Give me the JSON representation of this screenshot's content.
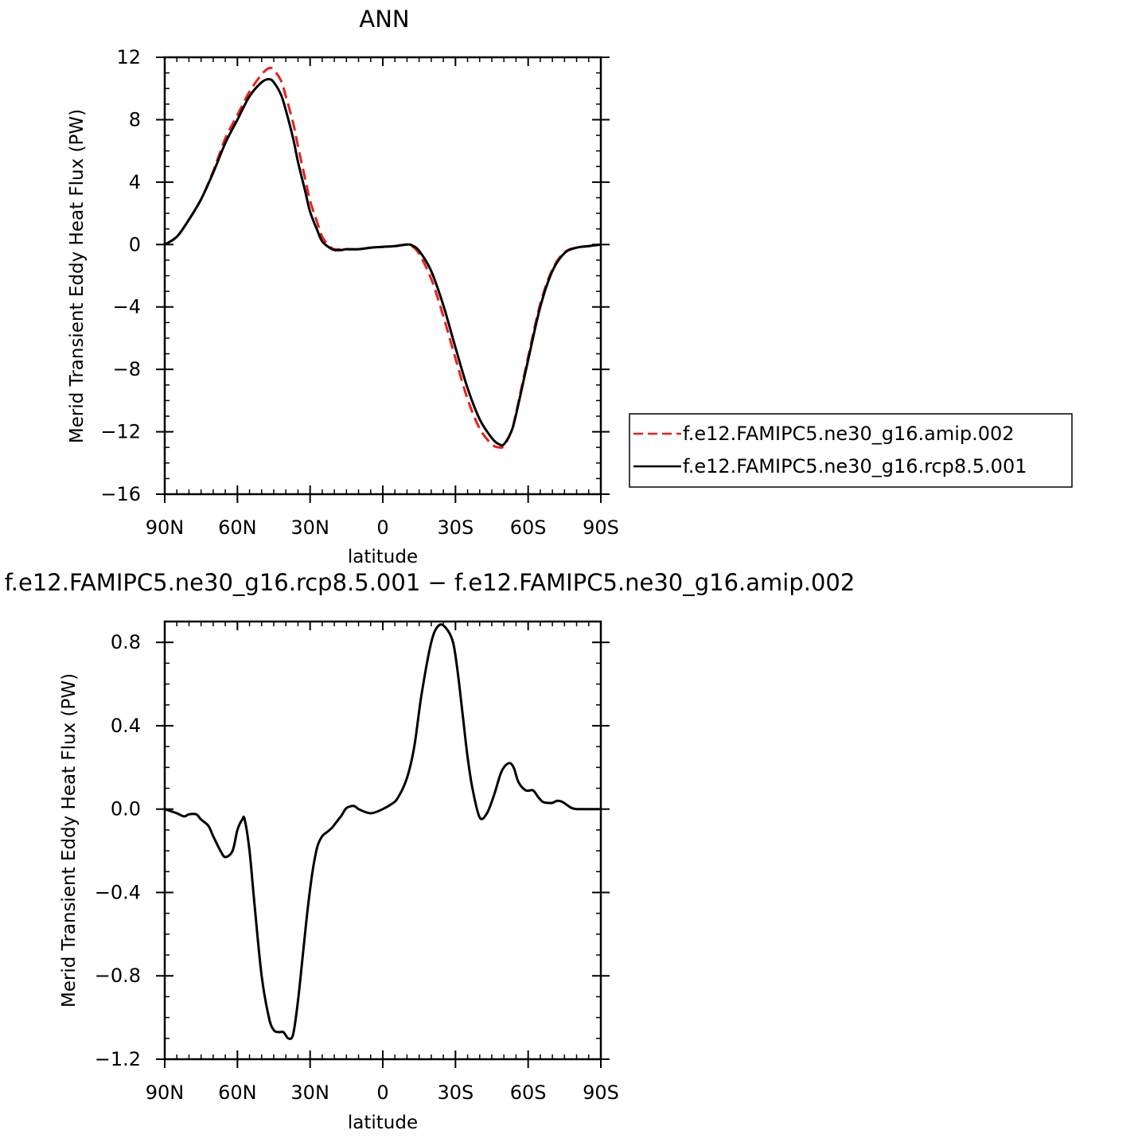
{
  "chart_data": [
    {
      "type": "line",
      "title": "ANN",
      "xlabel": "latitude",
      "ylabel": "Merid Transient Eddy Heat Flux (PW)",
      "xlim": [
        90,
        -90
      ],
      "ylim": [
        -16,
        12
      ],
      "x_direction": "north-to-south",
      "xticks": [
        90,
        60,
        30,
        0,
        -30,
        -60,
        -90
      ],
      "xtick_labels": [
        "90N",
        "60N",
        "30N",
        "0",
        "30S",
        "60S",
        "90S"
      ],
      "yticks": [
        -16,
        -12,
        -8,
        -4,
        0,
        4,
        8,
        12
      ],
      "ytick_labels": [
        "−16",
        "−12",
        "−8",
        "−4",
        "0",
        "4",
        "8",
        "12"
      ],
      "grid": false,
      "legend_position": "right",
      "series": [
        {
          "name": "f.e12.FAMIPC5.ne30_g16.amip.002",
          "color": "#e8201c",
          "dash": "dashed",
          "x": [
            90,
            85,
            80,
            75,
            70,
            65,
            60,
            55,
            50,
            47,
            45,
            42,
            40,
            37,
            35,
            32,
            30,
            27,
            25,
            22,
            20,
            17,
            15,
            10,
            5,
            0,
            -5,
            -10,
            -12,
            -15,
            -20,
            -25,
            -30,
            -35,
            -40,
            -45,
            -48,
            -50,
            -53,
            -55,
            -60,
            -65,
            -70,
            -75,
            -80,
            -85,
            -90
          ],
          "y": [
            0,
            0.5,
            1.6,
            2.9,
            4.7,
            6.8,
            8.3,
            9.8,
            10.9,
            11.3,
            11.2,
            10.5,
            9.5,
            7.8,
            6.3,
            4.2,
            2.8,
            1.4,
            0.5,
            -0.1,
            -0.3,
            -0.3,
            -0.3,
            -0.3,
            -0.2,
            -0.15,
            -0.1,
            0,
            -0.1,
            -0.6,
            -2.2,
            -4.6,
            -7.3,
            -9.9,
            -11.8,
            -12.8,
            -13.0,
            -12.9,
            -12.0,
            -10.8,
            -7.2,
            -3.8,
            -1.6,
            -0.5,
            -0.2,
            -0.1,
            0
          ]
        },
        {
          "name": "f.e12.FAMIPC5.ne30_g16.rcp8.5.001",
          "color": "#000000",
          "dash": "solid",
          "x": [
            90,
            85,
            80,
            75,
            70,
            65,
            60,
            55,
            50,
            47,
            45,
            42,
            40,
            37,
            35,
            32,
            30,
            27,
            25,
            22,
            20,
            17,
            15,
            10,
            5,
            0,
            -5,
            -10,
            -12,
            -15,
            -20,
            -25,
            -30,
            -35,
            -40,
            -45,
            -48,
            -50,
            -53,
            -55,
            -60,
            -65,
            -70,
            -75,
            -80,
            -85,
            -90
          ],
          "y": [
            0,
            0.5,
            1.6,
            2.9,
            4.6,
            6.5,
            8.0,
            9.5,
            10.4,
            10.6,
            10.4,
            9.6,
            8.6,
            6.8,
            5.3,
            3.4,
            2.1,
            0.9,
            0.2,
            -0.2,
            -0.35,
            -0.35,
            -0.3,
            -0.3,
            -0.2,
            -0.15,
            -0.1,
            0,
            -0.05,
            -0.4,
            -1.7,
            -3.9,
            -6.6,
            -9.2,
            -11.2,
            -12.4,
            -12.8,
            -12.8,
            -12.0,
            -10.9,
            -7.4,
            -4.0,
            -1.7,
            -0.55,
            -0.2,
            -0.1,
            0
          ]
        }
      ]
    },
    {
      "type": "line",
      "title": "f.e12.FAMIPC5.ne30_g16.rcp8.5.001 − f.e12.FAMIPC5.ne30_g16.amip.002",
      "xlabel": "latitude",
      "ylabel": "Merid Transient Eddy Heat Flux (PW)",
      "xlim": [
        90,
        -90
      ],
      "ylim": [
        -1.2,
        0.9
      ],
      "x_direction": "north-to-south",
      "xticks": [
        90,
        60,
        30,
        0,
        -30,
        -60,
        -90
      ],
      "xtick_labels": [
        "90N",
        "60N",
        "30N",
        "0",
        "30S",
        "60S",
        "90S"
      ],
      "yticks": [
        -1.2,
        -0.8,
        -0.4,
        0.0,
        0.4,
        0.8
      ],
      "ytick_labels": [
        "−1.2",
        "−0.8",
        "−0.4",
        "0.0",
        "0.4",
        "0.8"
      ],
      "grid": false,
      "series": [
        {
          "color": "#000000",
          "dash": "solid",
          "x": [
            90,
            85,
            82,
            80,
            77,
            75,
            72,
            70,
            67,
            65,
            62,
            60,
            58,
            57,
            55,
            53,
            50,
            47,
            45,
            43,
            41,
            39,
            37,
            35,
            33,
            31,
            29,
            27,
            25,
            23,
            21,
            19,
            17,
            15,
            12,
            10,
            7,
            5,
            3,
            0,
            -3,
            -6,
            -10,
            -13,
            -16,
            -20,
            -23,
            -26,
            -29,
            -31,
            -33,
            -35,
            -37,
            -40,
            -43,
            -46,
            -49,
            -52,
            -54,
            -56,
            -59,
            -62,
            -64,
            -66,
            -68,
            -70,
            -72,
            -74,
            -76,
            -78,
            -80,
            -83,
            -85,
            -88,
            -90
          ],
          "y": [
            0,
            -0.02,
            -0.035,
            -0.025,
            -0.025,
            -0.05,
            -0.08,
            -0.13,
            -0.2,
            -0.23,
            -0.2,
            -0.1,
            -0.05,
            -0.05,
            -0.2,
            -0.45,
            -0.8,
            -1.0,
            -1.06,
            -1.07,
            -1.07,
            -1.1,
            -1.08,
            -0.92,
            -0.7,
            -0.48,
            -0.3,
            -0.18,
            -0.13,
            -0.11,
            -0.09,
            -0.06,
            -0.03,
            0.005,
            0.015,
            0.0,
            -0.015,
            -0.02,
            -0.015,
            0.0,
            0.02,
            0.05,
            0.15,
            0.3,
            0.55,
            0.8,
            0.88,
            0.87,
            0.8,
            0.65,
            0.45,
            0.25,
            0.1,
            -0.04,
            -0.02,
            0.07,
            0.18,
            0.22,
            0.2,
            0.13,
            0.09,
            0.09,
            0.06,
            0.035,
            0.03,
            0.03,
            0.04,
            0.035,
            0.02,
            0.005,
            0,
            0,
            0,
            0,
            0
          ]
        }
      ]
    }
  ]
}
